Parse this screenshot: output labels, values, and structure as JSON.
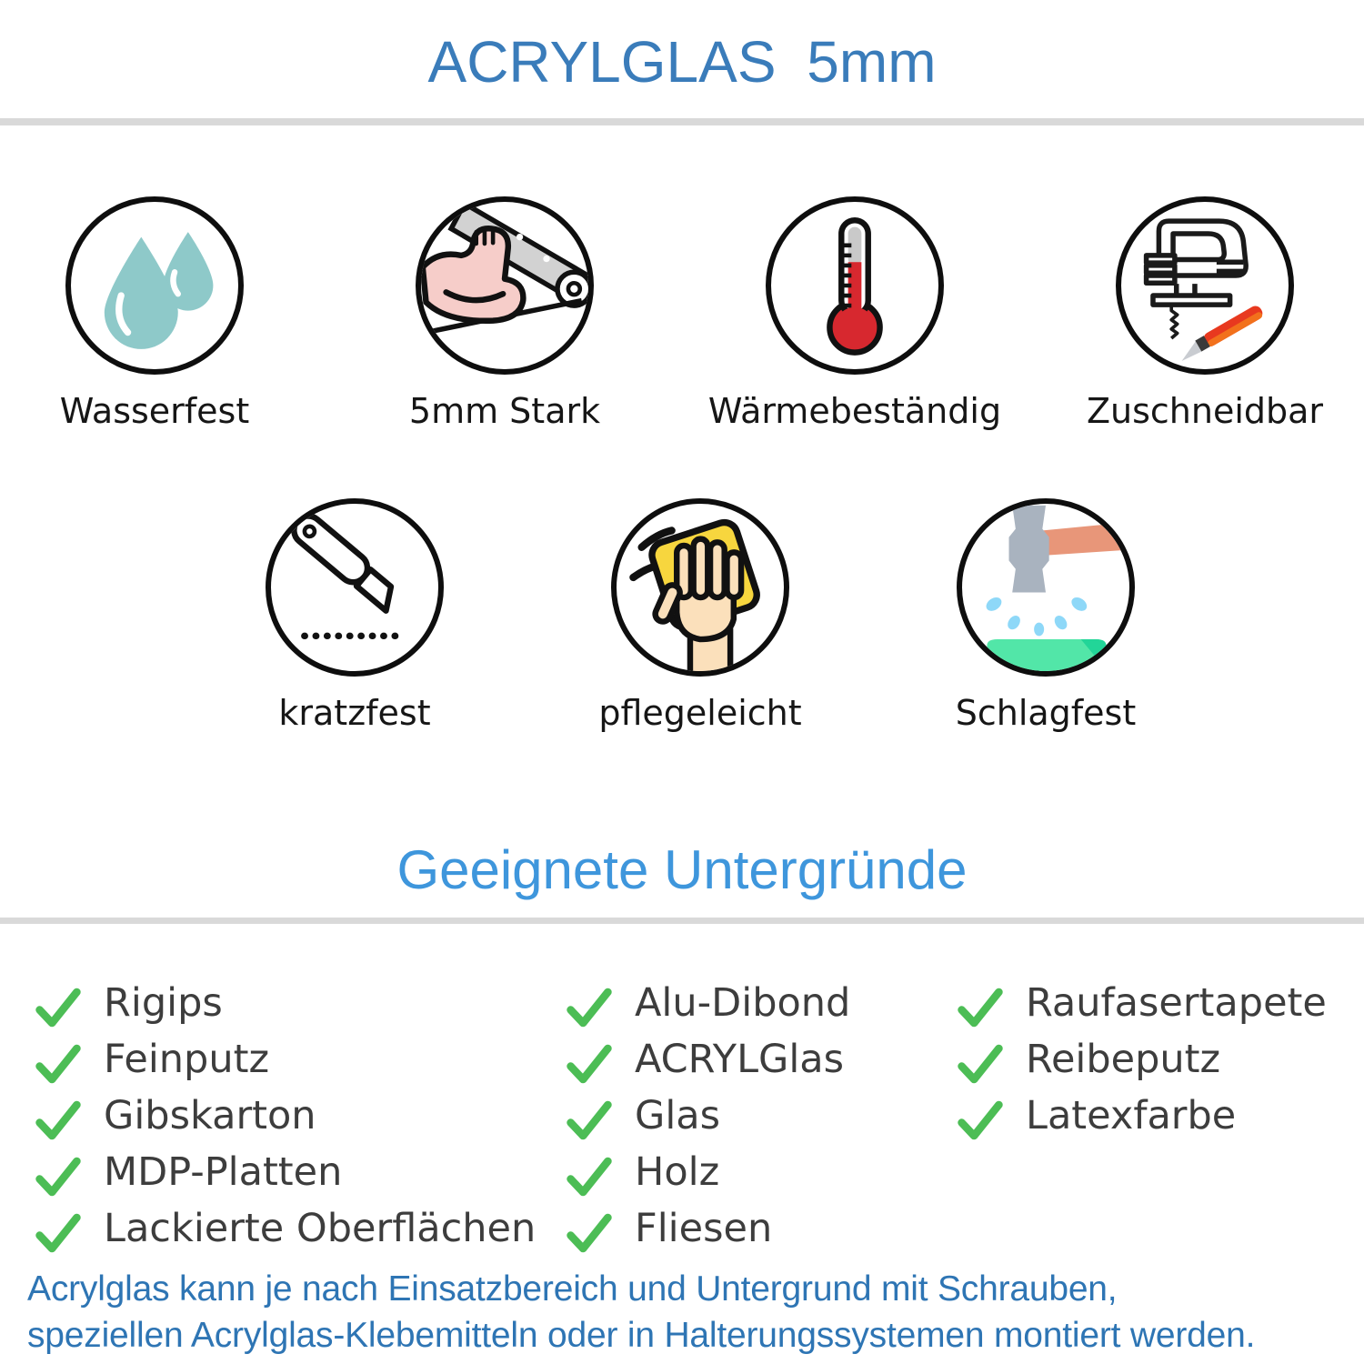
{
  "header": {
    "title": "ACRYLGLAS 5mm",
    "color": "#3a7cba"
  },
  "dividers": {
    "color": "#d9d9d9"
  },
  "features": {
    "label_color": "#161616",
    "row1": [
      {
        "label": "Wasserfest",
        "icon": "water-drops-icon"
      },
      {
        "label": "5mm Stark",
        "icon": "flexed-arm-icon"
      },
      {
        "label": "Wärmebeständig",
        "icon": "thermometer-icon"
      },
      {
        "label": "Zuschneidbar",
        "icon": "jigsaw-cutter-icon"
      }
    ],
    "row2": [
      {
        "label": "kratzfest",
        "icon": "cutter-knife-icon"
      },
      {
        "label": "pflegeleicht",
        "icon": "wiping-hand-icon"
      },
      {
        "label": "Schlagfest",
        "icon": "hammer-icon"
      }
    ]
  },
  "substrates": {
    "title": "Geeignete Untergründe",
    "title_color": "#3e96dc",
    "check_color": "#4cbd55",
    "text_color": "#3d3d3d",
    "columns": [
      [
        "Rigips",
        "Feinputz",
        "Gibskarton",
        "MDP-Platten",
        "Lackierte Oberflächen"
      ],
      [
        "Alu-Dibond",
        "ACRYLGlas",
        "Glas",
        "Holz",
        "Fliesen"
      ],
      [
        "Raufasertapete",
        "Reibeputz",
        "Latexfarbe"
      ]
    ]
  },
  "footer": {
    "color": "#2e75b4",
    "lines": [
      "Acrylglas kann je nach Einsatzbereich und Untergrund mit Schrauben,",
      "speziellen Acrylglas-Klebemitteln oder in Halterungssystemen montiert werden."
    ]
  },
  "icon_colors": {
    "water": "#8ec9c9",
    "arm_pink": "#f6cdc9",
    "sheet_gray": "#d2d2d2",
    "thermo_red": "#d7282f",
    "thermo_gray": "#c9c9c9",
    "knife_red": "#e8391f",
    "knife_orange": "#f2711c",
    "blade_gray": "#c9ccd1",
    "cloth_yellow": "#f7d63e",
    "skin": "#fbe0bb",
    "hammer_gray": "#a9b3bf",
    "hammer_handle": "#e89679",
    "splash_blue": "#8ed8f8",
    "surface_green": "#52e6a8",
    "surface_green_dark": "#22d598"
  }
}
